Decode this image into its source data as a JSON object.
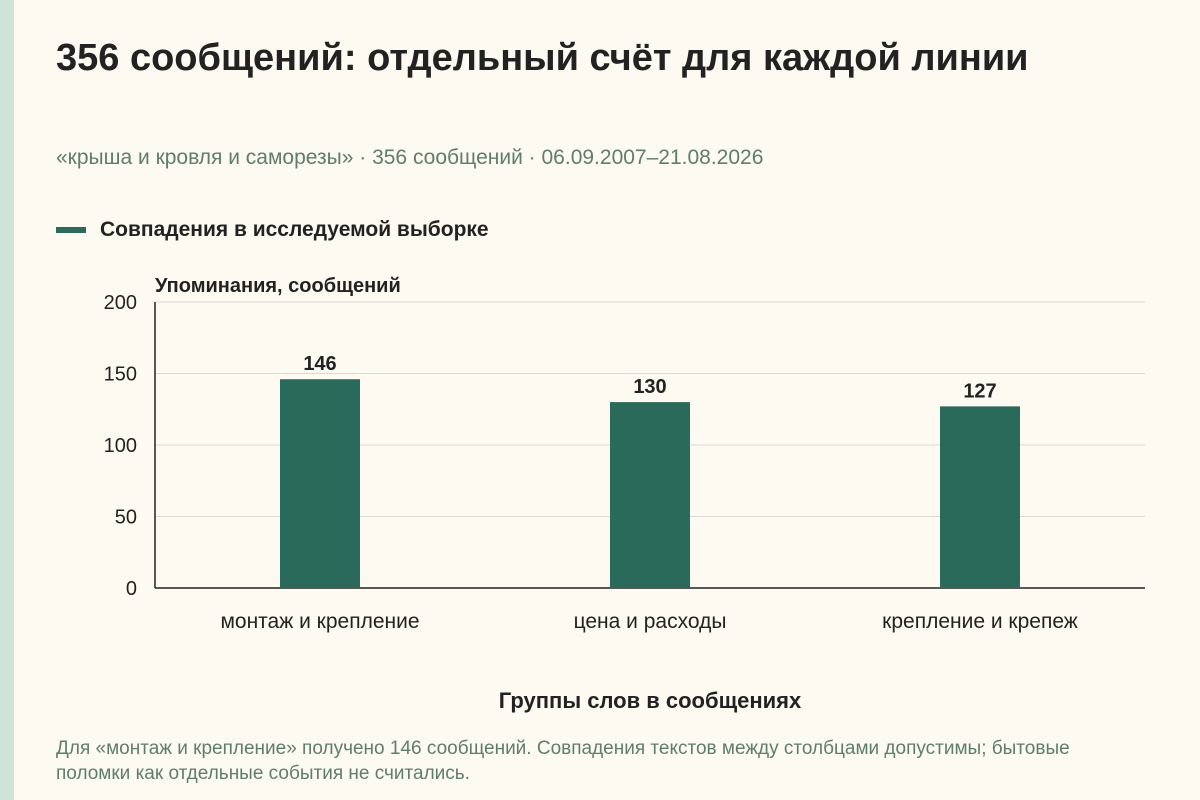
{
  "title": "356 сообщений: отдельный счёт для каждой линии",
  "subtitle": "«крыша и кровля и саморезы» · 356 сообщений · 06.09.2007–21.08.2026",
  "legend": {
    "label": "Совпадения в исследуемой выборке",
    "color": "#2a6a5a"
  },
  "note": "Для «монтаж и крепление» получено 146 сообщений. Совпадения текстов между столбцами допустимы; бытовые поломки как отдельные события не считались.",
  "colors": {
    "bar": "#2a6a5a",
    "accent_strip": "#cfe3d9",
    "subtitle": "#5f7d6c",
    "grid": "#d9d9d2"
  },
  "chart_data": {
    "type": "bar",
    "categories": [
      "монтаж и крепление",
      "цена и расходы",
      "крепление и крепеж"
    ],
    "series": [
      {
        "name": "Совпадения в исследуемой выборке",
        "values": [
          146,
          130,
          127
        ]
      }
    ],
    "ylabel": "Упоминания, сообщений",
    "xlabel": "Группы слов в сообщениях",
    "ylim": [
      0,
      200
    ],
    "yticks": [
      0,
      50,
      100,
      150,
      200
    ],
    "grid": true,
    "legend_position": "top-left"
  }
}
